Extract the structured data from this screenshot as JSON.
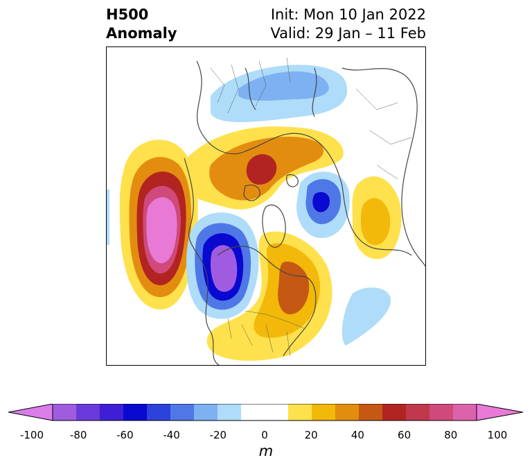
{
  "header": {
    "title_line1": "H500",
    "title_line2": "Anomaly",
    "init_label": "Init: Mon 10 Jan 2022",
    "valid_label": "Valid: 29 Jan – 11 Feb"
  },
  "colorbar": {
    "units": "m",
    "min": -100,
    "max": 100,
    "step": 10,
    "tick_labels": [
      "-100",
      "-80",
      "-60",
      "-40",
      "-20",
      "0",
      "20",
      "40",
      "60",
      "80",
      "100"
    ],
    "colors": [
      "#d97ee8",
      "#a05ce0",
      "#6a3ada",
      "#3f1fd6",
      "#0a09cf",
      "#2b42db",
      "#4f78e6",
      "#7db1f2",
      "#aedcf9",
      "#ffffff",
      "#ffffff",
      "#fee14c",
      "#f2b80a",
      "#e38d10",
      "#c55913",
      "#b22421",
      "#c1384d",
      "#cf4a7a",
      "#db62ab",
      "#e87ad6"
    ]
  },
  "map": {
    "field": "500 hPa geopotential height anomaly",
    "projection": "north-polar-stereographic"
  }
}
